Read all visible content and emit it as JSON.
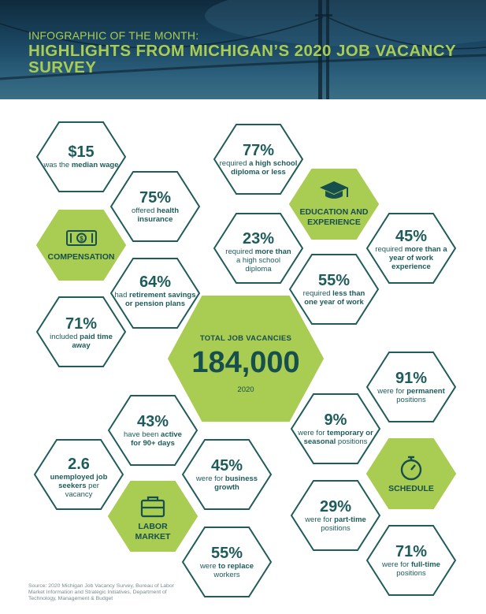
{
  "header": {
    "kicker": "INFOGRAPHIC OF THE MONTH:",
    "title": "HIGHLIGHTS FROM MICHIGAN’S 2020 JOB VACANCY SURVEY"
  },
  "colors": {
    "accent_green": "#a9cc52",
    "hex_stroke": "#1f5c5a",
    "text_teal": "#1d5c5b"
  },
  "center": {
    "label": "TOTAL JOB VACANCIES",
    "value": "184,000",
    "year": "2020"
  },
  "compensation": {
    "category": "COMPENSATION",
    "icon": "dollar-bill-icon",
    "stats": [
      {
        "value": "$15",
        "pre": "was the ",
        "bold": "median wage",
        "post": ""
      },
      {
        "value": "75%",
        "pre": "offered ",
        "bold": "health insurance",
        "post": ""
      },
      {
        "value": "64%",
        "pre": "had ",
        "bold": "retirement savings or pension plans",
        "post": ""
      },
      {
        "value": "71%",
        "pre": "included ",
        "bold": "paid time away",
        "post": ""
      }
    ]
  },
  "education": {
    "category": "EDUCATION AND EXPERIENCE",
    "icon": "graduation-cap-icon",
    "stats": [
      {
        "value": "77%",
        "pre": "required ",
        "bold": "a high school diploma or less",
        "post": ""
      },
      {
        "value": "23%",
        "pre": "required ",
        "bold": "more than",
        "post": " a high school diploma"
      },
      {
        "value": "45%",
        "pre": "required ",
        "bold": "more than a year of work experience",
        "post": ""
      },
      {
        "value": "55%",
        "pre": "required ",
        "bold": "less than one year of work",
        "post": ""
      }
    ]
  },
  "labor_market": {
    "category": "LABOR MARKET",
    "icon": "briefcase-icon",
    "stats": [
      {
        "value": "43%",
        "pre": "have been ",
        "bold": "active for 90+ days",
        "post": ""
      },
      {
        "value": "2.6",
        "pre": "",
        "bold": "unemployed job seekers",
        "post": " per vacancy"
      },
      {
        "value": "45%",
        "pre": "were for ",
        "bold": "business growth",
        "post": ""
      },
      {
        "value": "55%",
        "pre": "were ",
        "bold": "to replace",
        "post": " workers"
      }
    ]
  },
  "schedule": {
    "category": "SCHEDULE",
    "icon": "stopwatch-icon",
    "stats": [
      {
        "value": "91%",
        "pre": "were for ",
        "bold": "permanent",
        "post": " positions"
      },
      {
        "value": "9%",
        "pre": "were for ",
        "bold": "temporary or seasonal",
        "post": " positions"
      },
      {
        "value": "29%",
        "pre": "were for ",
        "bold": "part-time",
        "post": " positions"
      },
      {
        "value": "71%",
        "pre": "were for ",
        "bold": "full-time",
        "post": " positions"
      }
    ]
  },
  "source": "Source: 2020 Michigan Job Vacancy Survey, Bureau of Labor Market Information and Strategic Initiatives, Department of Technology, Management & Budget"
}
